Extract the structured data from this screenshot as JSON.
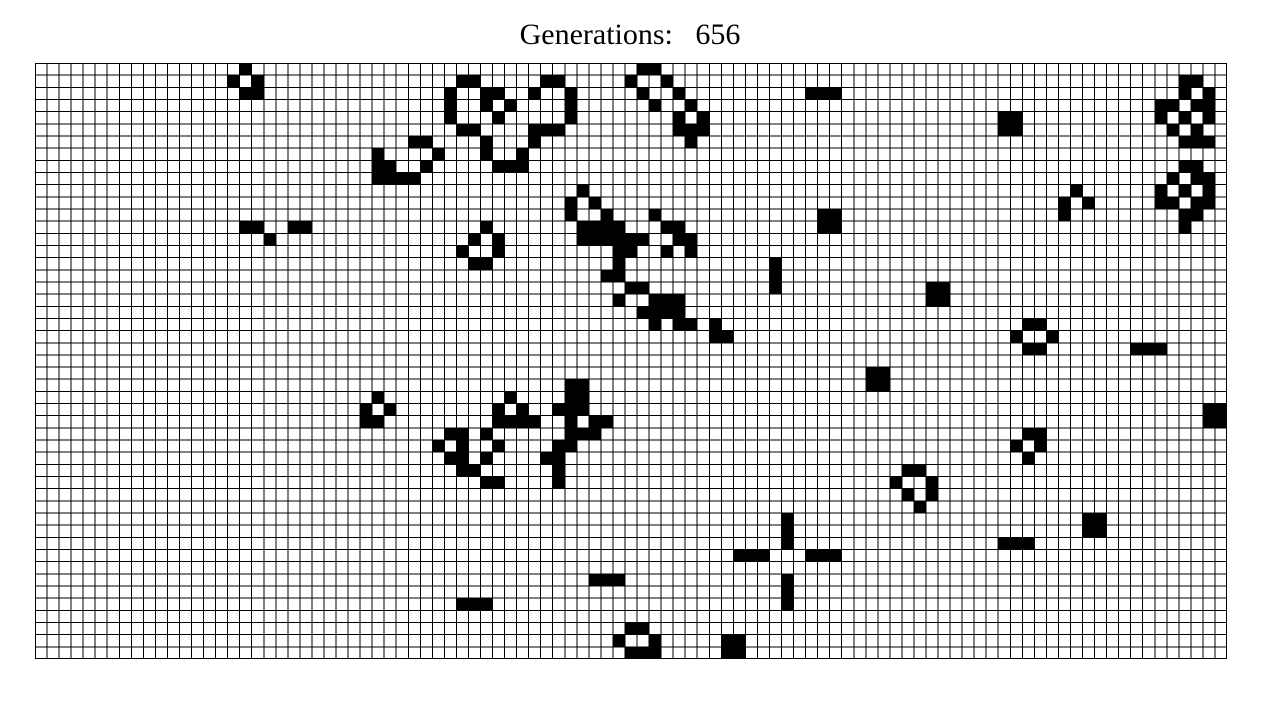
{
  "header": {
    "label": "Generations:",
    "value": "656"
  },
  "board": {
    "columns": 99,
    "rows": 49,
    "alive_color": "#000000",
    "dead_color": "#ffffff",
    "grid_color": "#000000",
    "alive_cells": [
      [
        17,
        0
      ],
      [
        16,
        1
      ],
      [
        18,
        1
      ],
      [
        17,
        2
      ],
      [
        18,
        2
      ],
      [
        50,
        0
      ],
      [
        51,
        0
      ],
      [
        49,
        1
      ],
      [
        52,
        1
      ],
      [
        50,
        2
      ],
      [
        53,
        2
      ],
      [
        51,
        3
      ],
      [
        54,
        3
      ],
      [
        53,
        4
      ],
      [
        55,
        4
      ],
      [
        53,
        5
      ],
      [
        54,
        5
      ],
      [
        55,
        5
      ],
      [
        54,
        6
      ],
      [
        35,
        1
      ],
      [
        36,
        1
      ],
      [
        42,
        1
      ],
      [
        43,
        1
      ],
      [
        34,
        2
      ],
      [
        37,
        2
      ],
      [
        38,
        2
      ],
      [
        41,
        2
      ],
      [
        44,
        2
      ],
      [
        34,
        3
      ],
      [
        37,
        3
      ],
      [
        39,
        3
      ],
      [
        44,
        3
      ],
      [
        34,
        4
      ],
      [
        38,
        4
      ],
      [
        44,
        4
      ],
      [
        35,
        5
      ],
      [
        36,
        5
      ],
      [
        41,
        5
      ],
      [
        42,
        5
      ],
      [
        43,
        5
      ],
      [
        37,
        6
      ],
      [
        41,
        6
      ],
      [
        37,
        7
      ],
      [
        40,
        7
      ],
      [
        38,
        8
      ],
      [
        39,
        8
      ],
      [
        40,
        8
      ],
      [
        31,
        6
      ],
      [
        32,
        6
      ],
      [
        28,
        7
      ],
      [
        33,
        7
      ],
      [
        28,
        8
      ],
      [
        29,
        8
      ],
      [
        32,
        8
      ],
      [
        28,
        9
      ],
      [
        29,
        9
      ],
      [
        30,
        9
      ],
      [
        31,
        9
      ],
      [
        64,
        2
      ],
      [
        65,
        2
      ],
      [
        66,
        2
      ],
      [
        80,
        4
      ],
      [
        81,
        4
      ],
      [
        80,
        5
      ],
      [
        81,
        5
      ],
      [
        95,
        1
      ],
      [
        96,
        1
      ],
      [
        95,
        2
      ],
      [
        97,
        2
      ],
      [
        93,
        3
      ],
      [
        94,
        3
      ],
      [
        96,
        3
      ],
      [
        97,
        3
      ],
      [
        93,
        4
      ],
      [
        95,
        4
      ],
      [
        97,
        4
      ],
      [
        94,
        5
      ],
      [
        96,
        5
      ],
      [
        95,
        6
      ],
      [
        96,
        6
      ],
      [
        97,
        6
      ],
      [
        95,
        8
      ],
      [
        96,
        8
      ],
      [
        94,
        9
      ],
      [
        96,
        9
      ],
      [
        97,
        9
      ],
      [
        93,
        10
      ],
      [
        95,
        10
      ],
      [
        97,
        10
      ],
      [
        93,
        11
      ],
      [
        94,
        11
      ],
      [
        96,
        11
      ],
      [
        97,
        11
      ],
      [
        95,
        12
      ],
      [
        96,
        12
      ],
      [
        95,
        13
      ],
      [
        86,
        10
      ],
      [
        85,
        11
      ],
      [
        87,
        11
      ],
      [
        85,
        12
      ],
      [
        45,
        10
      ],
      [
        44,
        11
      ],
      [
        46,
        11
      ],
      [
        44,
        12
      ],
      [
        47,
        12
      ],
      [
        51,
        12
      ],
      [
        45,
        13
      ],
      [
        46,
        13
      ],
      [
        47,
        13
      ],
      [
        48,
        13
      ],
      [
        52,
        13
      ],
      [
        53,
        13
      ],
      [
        45,
        14
      ],
      [
        46,
        14
      ],
      [
        47,
        14
      ],
      [
        48,
        14
      ],
      [
        49,
        14
      ],
      [
        50,
        14
      ],
      [
        53,
        14
      ],
      [
        54,
        14
      ],
      [
        48,
        15
      ],
      [
        49,
        15
      ],
      [
        52,
        15
      ],
      [
        54,
        15
      ],
      [
        48,
        16
      ],
      [
        47,
        17
      ],
      [
        48,
        17
      ],
      [
        49,
        18
      ],
      [
        50,
        18
      ],
      [
        48,
        19
      ],
      [
        51,
        19
      ],
      [
        52,
        19
      ],
      [
        53,
        19
      ],
      [
        50,
        20
      ],
      [
        51,
        20
      ],
      [
        52,
        20
      ],
      [
        53,
        20
      ],
      [
        51,
        21
      ],
      [
        53,
        21
      ],
      [
        54,
        21
      ],
      [
        56,
        21
      ],
      [
        56,
        22
      ],
      [
        57,
        22
      ],
      [
        65,
        12
      ],
      [
        66,
        12
      ],
      [
        65,
        13
      ],
      [
        66,
        13
      ],
      [
        17,
        13
      ],
      [
        18,
        13
      ],
      [
        21,
        13
      ],
      [
        22,
        13
      ],
      [
        19,
        14
      ],
      [
        37,
        13
      ],
      [
        36,
        14
      ],
      [
        38,
        14
      ],
      [
        35,
        15
      ],
      [
        38,
        15
      ],
      [
        36,
        16
      ],
      [
        37,
        16
      ],
      [
        61,
        16
      ],
      [
        61,
        17
      ],
      [
        61,
        18
      ],
      [
        74,
        18
      ],
      [
        75,
        18
      ],
      [
        74,
        19
      ],
      [
        75,
        19
      ],
      [
        82,
        21
      ],
      [
        83,
        21
      ],
      [
        81,
        22
      ],
      [
        84,
        22
      ],
      [
        82,
        23
      ],
      [
        83,
        23
      ],
      [
        91,
        23
      ],
      [
        92,
        23
      ],
      [
        93,
        23
      ],
      [
        69,
        25
      ],
      [
        70,
        25
      ],
      [
        69,
        26
      ],
      [
        70,
        26
      ],
      [
        44,
        26
      ],
      [
        45,
        26
      ],
      [
        28,
        27
      ],
      [
        27,
        28
      ],
      [
        29,
        28
      ],
      [
        27,
        29
      ],
      [
        28,
        29
      ],
      [
        39,
        27
      ],
      [
        38,
        28
      ],
      [
        40,
        28
      ],
      [
        44,
        27
      ],
      [
        45,
        27
      ],
      [
        43,
        28
      ],
      [
        44,
        28
      ],
      [
        45,
        28
      ],
      [
        38,
        29
      ],
      [
        39,
        29
      ],
      [
        40,
        29
      ],
      [
        41,
        29
      ],
      [
        44,
        29
      ],
      [
        46,
        29
      ],
      [
        47,
        29
      ],
      [
        34,
        30
      ],
      [
        35,
        30
      ],
      [
        37,
        30
      ],
      [
        44,
        30
      ],
      [
        45,
        30
      ],
      [
        46,
        30
      ],
      [
        33,
        31
      ],
      [
        35,
        31
      ],
      [
        38,
        31
      ],
      [
        43,
        31
      ],
      [
        44,
        31
      ],
      [
        34,
        32
      ],
      [
        35,
        32
      ],
      [
        37,
        32
      ],
      [
        42,
        32
      ],
      [
        43,
        32
      ],
      [
        35,
        33
      ],
      [
        36,
        33
      ],
      [
        43,
        33
      ],
      [
        37,
        34
      ],
      [
        38,
        34
      ],
      [
        43,
        34
      ],
      [
        97,
        28
      ],
      [
        98,
        28
      ],
      [
        97,
        29
      ],
      [
        98,
        29
      ],
      [
        82,
        30
      ],
      [
        83,
        30
      ],
      [
        81,
        31
      ],
      [
        83,
        31
      ],
      [
        82,
        32
      ],
      [
        72,
        33
      ],
      [
        73,
        33
      ],
      [
        71,
        34
      ],
      [
        74,
        34
      ],
      [
        72,
        35
      ],
      [
        74,
        35
      ],
      [
        73,
        36
      ],
      [
        62,
        37
      ],
      [
        62,
        38
      ],
      [
        62,
        39
      ],
      [
        87,
        37
      ],
      [
        88,
        37
      ],
      [
        87,
        38
      ],
      [
        88,
        38
      ],
      [
        80,
        39
      ],
      [
        81,
        39
      ],
      [
        82,
        39
      ],
      [
        58,
        40
      ],
      [
        59,
        40
      ],
      [
        60,
        40
      ],
      [
        64,
        40
      ],
      [
        65,
        40
      ],
      [
        66,
        40
      ],
      [
        46,
        42
      ],
      [
        47,
        42
      ],
      [
        48,
        42
      ],
      [
        62,
        42
      ],
      [
        62,
        43
      ],
      [
        62,
        44
      ],
      [
        35,
        44
      ],
      [
        36,
        44
      ],
      [
        37,
        44
      ],
      [
        49,
        46
      ],
      [
        50,
        46
      ],
      [
        48,
        47
      ],
      [
        51,
        47
      ],
      [
        49,
        48
      ],
      [
        50,
        48
      ],
      [
        51,
        48
      ],
      [
        57,
        47
      ],
      [
        58,
        47
      ],
      [
        57,
        48
      ],
      [
        58,
        48
      ]
    ]
  }
}
